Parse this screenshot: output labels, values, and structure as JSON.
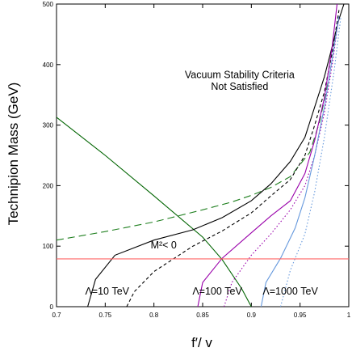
{
  "chart_data": {
    "type": "line",
    "title": "",
    "xlabel": "f′/ v",
    "ylabel": "Technipion Mass (GeV)",
    "xlim": [
      0.7,
      1.0
    ],
    "ylim": [
      0,
      500
    ],
    "xticks": [
      0.7,
      0.75,
      0.8,
      0.85,
      0.9,
      0.95,
      1.0
    ],
    "xtick_labels": [
      "0.7",
      "0.75",
      "0.8",
      "0.85",
      "0.9",
      "0.95",
      "1"
    ],
    "yticks": [
      0,
      100,
      200,
      300,
      400,
      500
    ],
    "ytick_labels": [
      "0",
      "100",
      "200",
      "300",
      "400",
      "500"
    ],
    "grid": false,
    "legend": "none",
    "series": [
      {
        "color": "#006400",
        "dash": "solid",
        "x": [
          0.7,
          0.75,
          0.8,
          0.85,
          0.87,
          0.89,
          0.9
        ],
        "y": [
          313,
          250,
          183,
          115,
          78,
          30,
          0
        ]
      },
      {
        "color": "#208020",
        "dash": "long",
        "x": [
          0.7,
          0.75,
          0.8,
          0.85,
          0.88,
          0.9,
          0.92,
          0.94,
          0.96,
          0.97,
          0.98
        ],
        "y": [
          110,
          124,
          140,
          160,
          173,
          184,
          197,
          215,
          255,
          305,
          380
        ]
      },
      {
        "color": "#000000",
        "dash": "solid",
        "x": [
          0.732,
          0.74,
          0.76,
          0.8,
          0.84,
          0.87,
          0.9,
          0.92,
          0.94,
          0.955,
          0.965,
          0.975,
          0.983,
          0.99,
          0.995
        ],
        "y": [
          0,
          45,
          85,
          110,
          127,
          147,
          175,
          203,
          240,
          280,
          330,
          380,
          430,
          475,
          500
        ]
      },
      {
        "color": "#000000",
        "dash": "short",
        "x": [
          0.772,
          0.78,
          0.8,
          0.84,
          0.87,
          0.9,
          0.92,
          0.94,
          0.955,
          0.965,
          0.975,
          0.983,
          0.99
        ],
        "y": [
          0,
          25,
          58,
          100,
          125,
          155,
          183,
          210,
          250,
          300,
          355,
          420,
          490
        ]
      },
      {
        "color": "#9900aa",
        "dash": "solid",
        "x": [
          0.845,
          0.85,
          0.87,
          0.9,
          0.92,
          0.94,
          0.955,
          0.965,
          0.975,
          0.983,
          0.988
        ],
        "y": [
          0,
          40,
          80,
          122,
          150,
          175,
          220,
          275,
          345,
          430,
          500
        ]
      },
      {
        "color": "#9900aa",
        "dash": "dotted",
        "x": [
          0.872,
          0.88,
          0.9,
          0.92,
          0.94,
          0.955,
          0.965,
          0.975,
          0.983,
          0.99
        ],
        "y": [
          0,
          40,
          85,
          120,
          160,
          200,
          250,
          320,
          400,
          480
        ]
      },
      {
        "color": "#6699dd",
        "dash": "solid",
        "x": [
          0.91,
          0.915,
          0.93,
          0.945,
          0.955,
          0.965,
          0.975,
          0.983,
          0.99
        ],
        "y": [
          0,
          40,
          80,
          130,
          180,
          250,
          330,
          410,
          480
        ]
      },
      {
        "color": "#6699dd",
        "dash": "dotted",
        "x": [
          0.93,
          0.94,
          0.955,
          0.965,
          0.975,
          0.985,
          0.992
        ],
        "y": [
          0,
          60,
          120,
          190,
          280,
          390,
          480
        ]
      },
      {
        "color": "#ff6666",
        "dash": "solid",
        "x": [
          0.7,
          1.0
        ],
        "y": [
          79,
          79
        ]
      }
    ],
    "annotations": [
      {
        "text": "Vacuum Stability Criteria",
        "x": 0.888,
        "y": 378
      },
      {
        "text": "Not Satisfied",
        "x": 0.888,
        "y": 358
      },
      {
        "text": "M²< 0",
        "x": 0.81,
        "y": 96
      },
      {
        "text": "Λ=10 TeV",
        "x": 0.752,
        "y": 20
      },
      {
        "text": "Λ=100 TeV",
        "x": 0.865,
        "y": 20
      },
      {
        "text": "Λ=1000 TeV",
        "x": 0.94,
        "y": 20
      }
    ]
  }
}
